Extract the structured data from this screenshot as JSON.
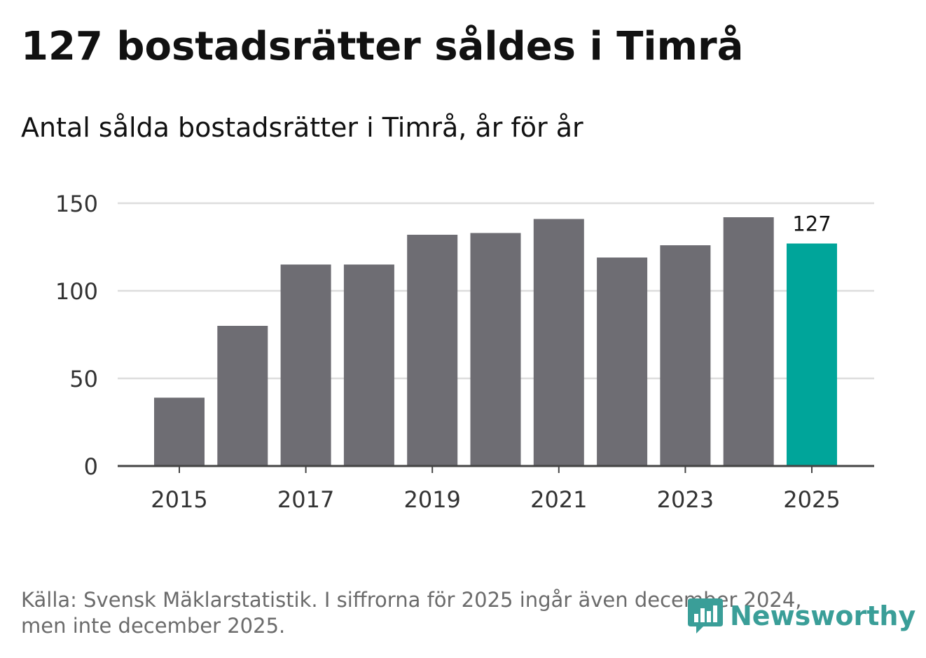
{
  "title": "127 bostadsrätter såldes i Timrå",
  "subtitle": "Antal sålda bostadsrätter i Timrå, år för år",
  "chart_data": {
    "type": "bar",
    "categories": [
      2015,
      2016,
      2017,
      2018,
      2019,
      2020,
      2021,
      2022,
      2023,
      2024,
      2025
    ],
    "values": [
      39,
      80,
      115,
      115,
      132,
      133,
      141,
      119,
      126,
      142,
      127
    ],
    "x_tick_labels": [
      "2015",
      "2017",
      "2019",
      "2021",
      "2023",
      "2025"
    ],
    "y_ticks": [
      0,
      50,
      100,
      150
    ],
    "ylim": [
      0,
      150
    ],
    "highlight_category": 2025,
    "highlight_label": "127",
    "grid": true,
    "xlabel": "",
    "ylabel": ""
  },
  "colors": {
    "bar": "#6e6d73",
    "highlight": "#00a59a",
    "grid": "#dddddd",
    "axis": "#444444",
    "tick_text": "#333333",
    "brand": "#3a9e98"
  },
  "source_lines": [
    "Källa: Svensk Mäklarstatistik. I siffrorna för 2025 ingår även december 2024,",
    "men inte december 2025."
  ],
  "brand": {
    "name": "Newsworthy",
    "icon": "bar-chart-speech-bubble-icon"
  }
}
